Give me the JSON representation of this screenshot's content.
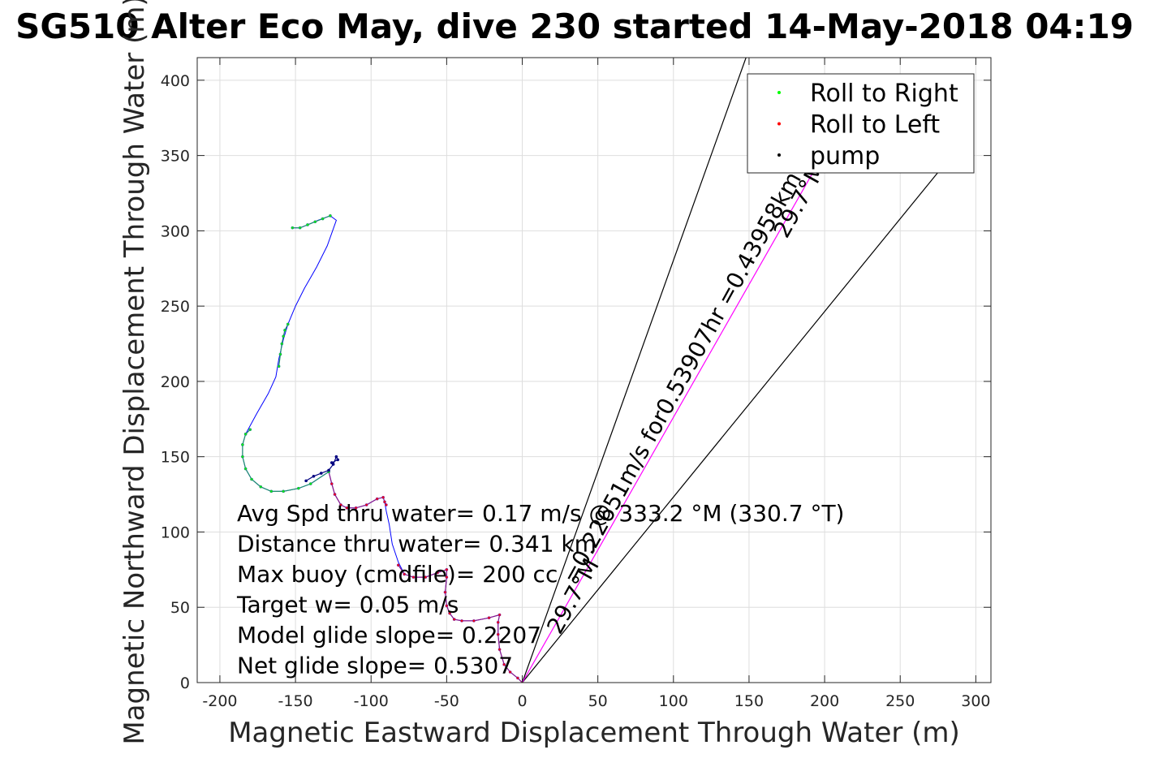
{
  "chart_data": {
    "type": "line",
    "title": "SG510 Alter Eco May, dive 230 started 14-May-2018 04:19",
    "xlabel": "Magnetic Eastward Displacement Through Water (m)",
    "ylabel": "Magnetic Northward Displacement Through Water (m)",
    "xlim": [
      -215,
      310
    ],
    "ylim": [
      0,
      415
    ],
    "xticks": [
      -200,
      -150,
      -100,
      -50,
      0,
      50,
      100,
      150,
      200,
      250,
      300
    ],
    "yticks": [
      0,
      50,
      100,
      150,
      200,
      250,
      300,
      350,
      400
    ],
    "grid": true,
    "legend": {
      "placement": "top-right",
      "entries": [
        {
          "label": "Roll to Right",
          "color": "#00ff00"
        },
        {
          "label": "Roll to Left",
          "color": "#ff0000"
        },
        {
          "label": "pump",
          "color": "#000000"
        }
      ]
    },
    "track_color": "#0000ff",
    "track": [
      [
        0,
        0
      ],
      [
        -3,
        3
      ],
      [
        -8,
        7
      ],
      [
        -12,
        12
      ],
      [
        -15,
        22
      ],
      [
        -16,
        32
      ],
      [
        -16,
        40
      ],
      [
        -15,
        45
      ],
      [
        -22,
        43
      ],
      [
        -32,
        41
      ],
      [
        -40,
        41
      ],
      [
        -45,
        42
      ],
      [
        -48,
        46
      ],
      [
        -50,
        51
      ],
      [
        -51,
        60
      ],
      [
        -50,
        70
      ],
      [
        -50,
        75
      ],
      [
        -56,
        73
      ],
      [
        -64,
        70
      ],
      [
        -72,
        70
      ],
      [
        -78,
        72
      ],
      [
        -82,
        80
      ],
      [
        -86,
        92
      ],
      [
        -88,
        105
      ],
      [
        -90,
        114
      ],
      [
        -91,
        120
      ],
      [
        -92,
        123
      ],
      [
        -96,
        122
      ],
      [
        -103,
        118
      ],
      [
        -110,
        116
      ],
      [
        -116,
        116
      ],
      [
        -120,
        118
      ],
      [
        -124,
        125
      ],
      [
        -126,
        132
      ],
      [
        -128,
        140
      ],
      [
        -140,
        132
      ],
      [
        -148,
        129
      ],
      [
        -158,
        127
      ],
      [
        -166,
        127
      ],
      [
        -173,
        130
      ],
      [
        -179,
        135
      ],
      [
        -183,
        142
      ],
      [
        -185,
        150
      ],
      [
        -185,
        158
      ],
      [
        -183,
        165
      ],
      [
        -176,
        178
      ],
      [
        -168,
        192
      ],
      [
        -163,
        203
      ],
      [
        -161,
        215
      ],
      [
        -158,
        228
      ],
      [
        -155,
        238
      ],
      [
        -150,
        250
      ],
      [
        -144,
        262
      ],
      [
        -136,
        276
      ],
      [
        -129,
        290
      ],
      [
        -123,
        307
      ],
      [
        -127,
        310
      ],
      [
        -135,
        307
      ],
      [
        -142,
        304
      ],
      [
        -147,
        302
      ],
      [
        -152,
        302
      ]
    ],
    "roll_right_segments": [
      [
        [
          -128,
          140
        ],
        [
          -140,
          132
        ],
        [
          -148,
          129
        ],
        [
          -158,
          127
        ],
        [
          -166,
          127
        ],
        [
          -173,
          130
        ],
        [
          -179,
          135
        ],
        [
          -183,
          142
        ],
        [
          -185,
          150
        ],
        [
          -185,
          158
        ],
        [
          -183,
          165
        ],
        [
          -180,
          168
        ]
      ],
      [
        [
          -161,
          210
        ],
        [
          -160,
          218
        ],
        [
          -159,
          225
        ],
        [
          -158,
          230
        ],
        [
          -157,
          234
        ],
        [
          -155,
          238
        ]
      ],
      [
        [
          -127,
          310
        ],
        [
          -132,
          308
        ],
        [
          -137,
          306
        ],
        [
          -142,
          304
        ],
        [
          -147,
          302
        ],
        [
          -152,
          302
        ]
      ]
    ],
    "roll_left_segments": [
      [
        [
          0,
          0
        ],
        [
          -3,
          3
        ],
        [
          -8,
          7
        ],
        [
          -12,
          12
        ],
        [
          -15,
          22
        ],
        [
          -16,
          32
        ],
        [
          -16,
          40
        ],
        [
          -15,
          45
        ],
        [
          -22,
          43
        ],
        [
          -32,
          41
        ],
        [
          -40,
          41
        ],
        [
          -45,
          42
        ],
        [
          -48,
          46
        ],
        [
          -50,
          51
        ],
        [
          -51,
          60
        ],
        [
          -50,
          70
        ],
        [
          -50,
          75
        ],
        [
          -56,
          73
        ],
        [
          -64,
          70
        ],
        [
          -72,
          70
        ],
        [
          -78,
          72
        ],
        [
          -82,
          78
        ]
      ],
      [
        [
          -90,
          118
        ],
        [
          -91,
          120
        ],
        [
          -92,
          123
        ],
        [
          -96,
          122
        ],
        [
          -103,
          118
        ],
        [
          -110,
          116
        ],
        [
          -116,
          116
        ],
        [
          -120,
          118
        ],
        [
          -124,
          125
        ],
        [
          -126,
          132
        ],
        [
          -128,
          140
        ]
      ]
    ],
    "pump_segments": [
      [
        [
          -143,
          134
        ],
        [
          -138,
          137
        ],
        [
          -133,
          139
        ],
        [
          -128,
          141
        ],
        [
          -125,
          145
        ],
        [
          -123,
          150
        ],
        [
          -122,
          148
        ],
        [
          -126,
          146
        ]
      ]
    ],
    "lines": [
      {
        "color": "#000000",
        "from": [
          0,
          0
        ],
        "to": [
          148,
          415
        ]
      },
      {
        "color": "#000000",
        "from": [
          0,
          0
        ],
        "to": [
          280,
          345
        ]
      },
      {
        "color": "#ff00ff",
        "from": [
          0,
          0
        ],
        "to": [
          210,
          370
        ]
      }
    ],
    "annotations": [
      {
        "text": "=0.22651m/s for0.53907hr =0.43958km",
        "x": 110,
        "y": 200,
        "rotation": -61
      },
      {
        "text": "29.7°M",
        "x": 188,
        "y": 318,
        "rotation": -61
      },
      {
        "text": "29.7°M",
        "x": 38,
        "y": 55,
        "rotation": -61
      }
    ],
    "stats": [
      "Avg Spd thru water=  0.17 m/s @ 333.2 °M (330.7 °T)",
      "Distance thru water=  0.341 km",
      "Max buoy (cmdfile)= 200 cc",
      "Target w= 0.05 m/s",
      "Model glide slope= 0.2207",
      "Net glide slope= 0.5307"
    ]
  }
}
